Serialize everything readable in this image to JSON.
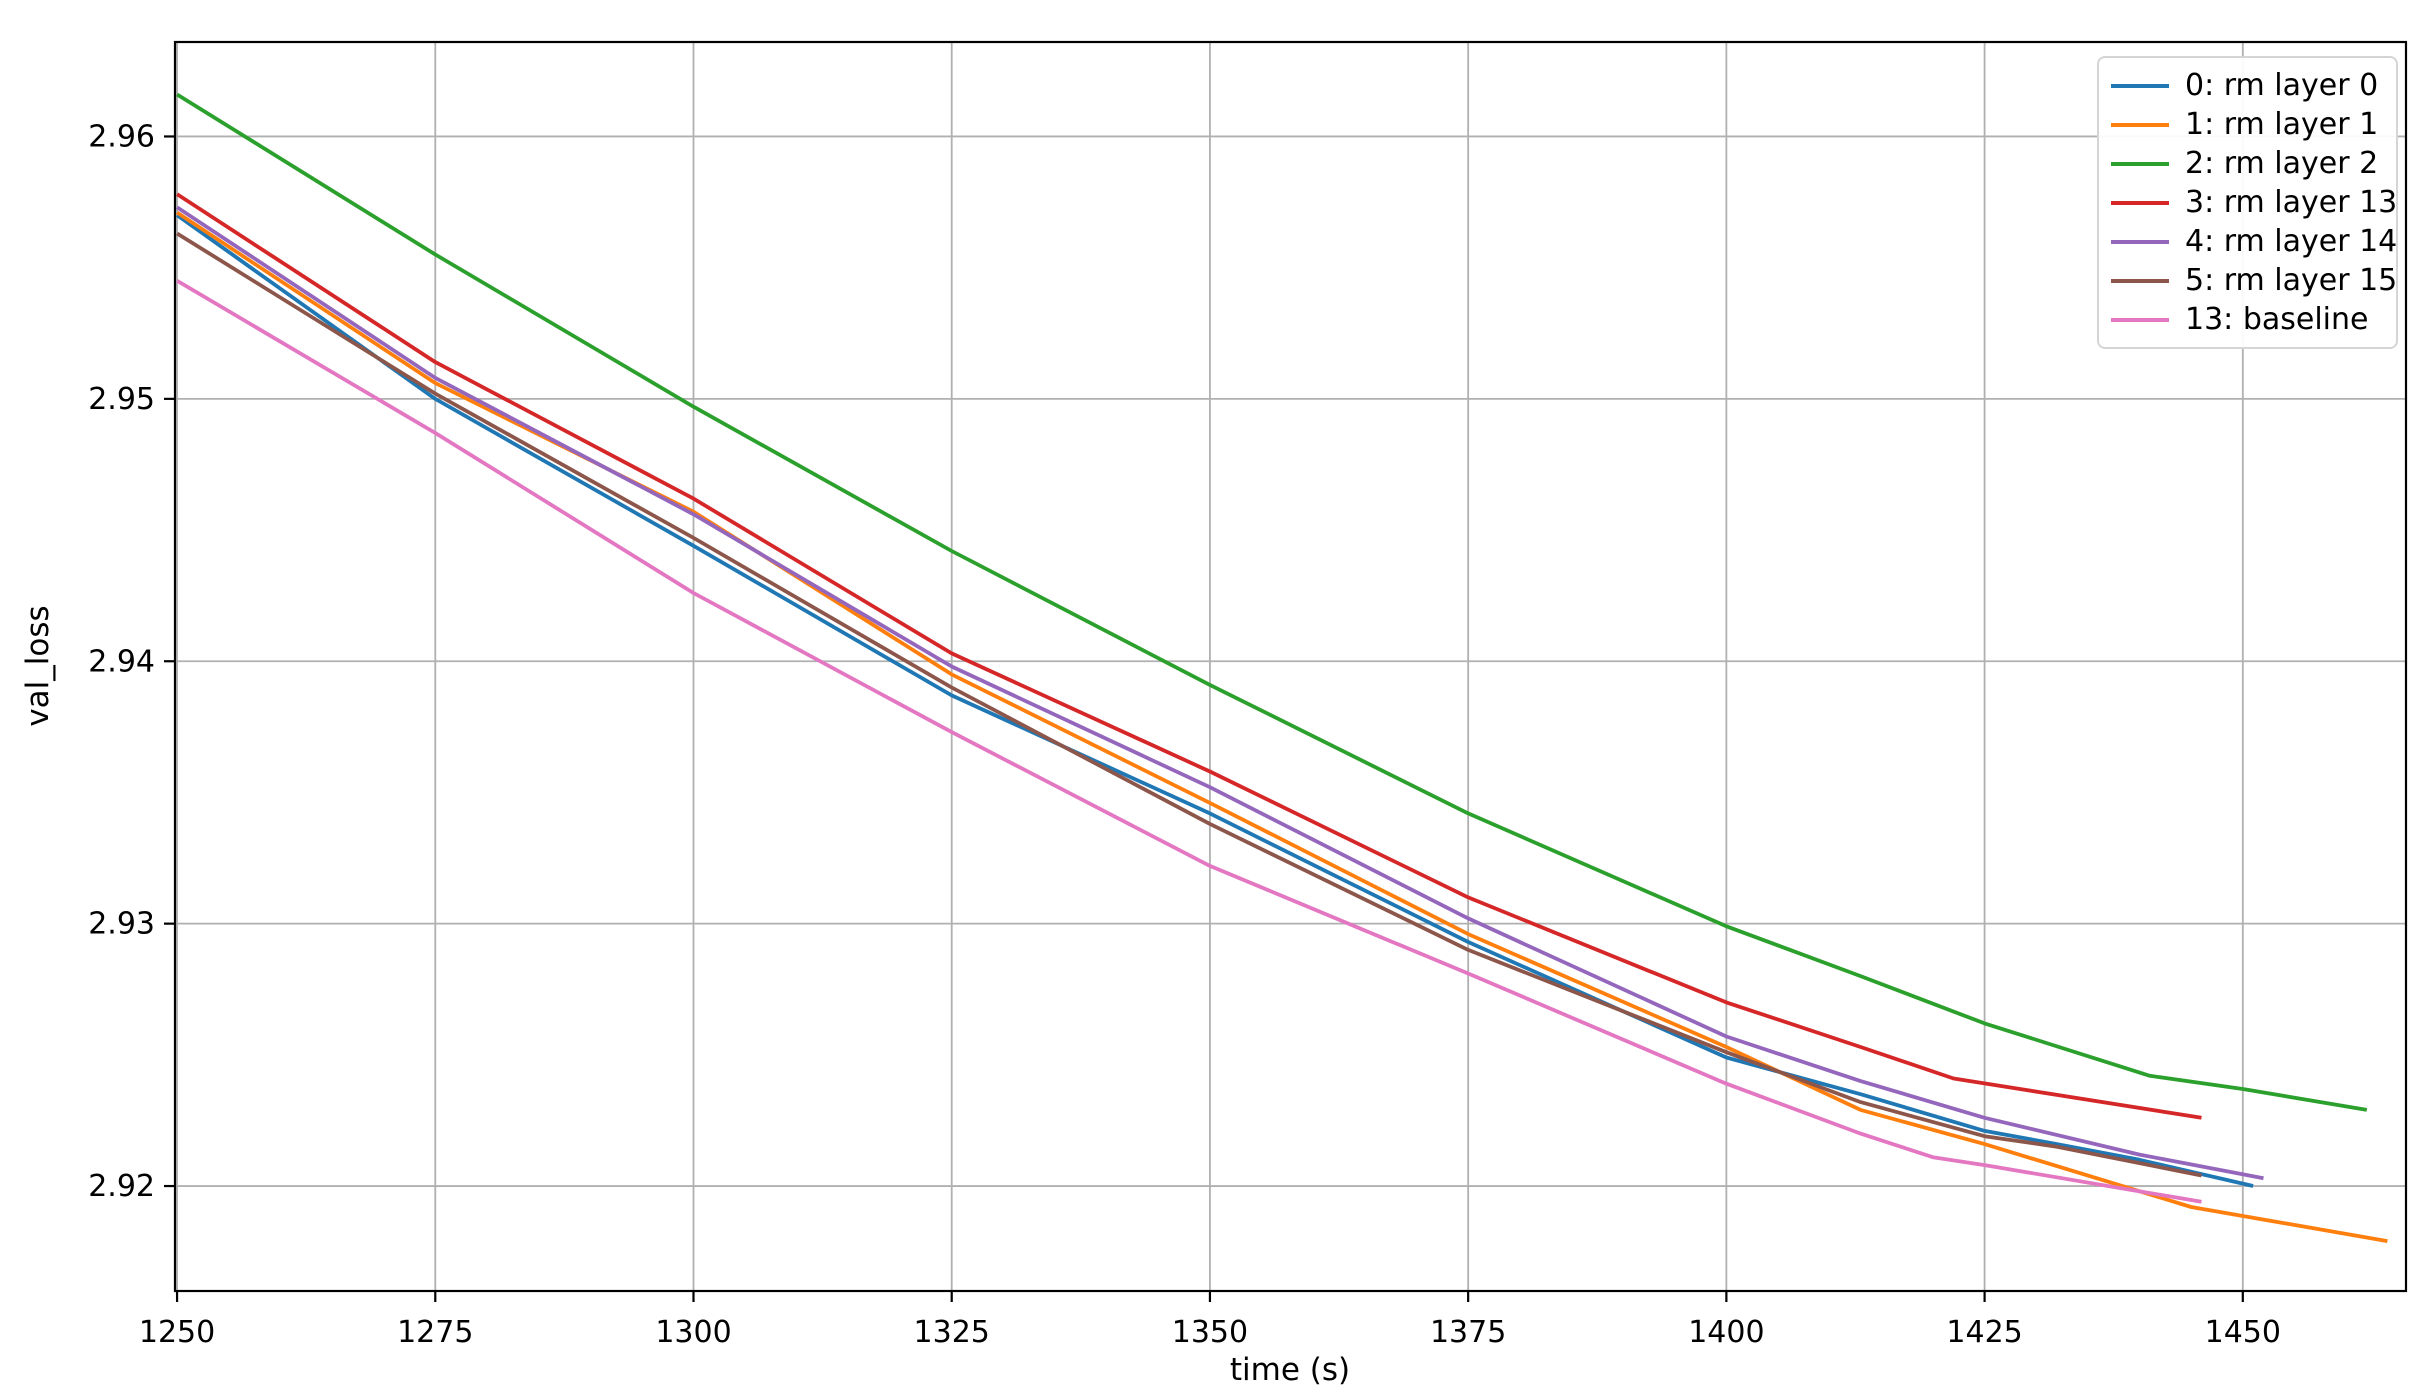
{
  "figure": {
    "background": "#ffffff",
    "text_color": "#000000"
  },
  "chart_data": {
    "type": "line",
    "title": "",
    "xlabel": "time (s)",
    "ylabel": "val_loss",
    "xlim": [
      1249.8,
      1465.8
    ],
    "ylim": [
      2.916,
      2.9636
    ],
    "x_ticks": [
      1250,
      1275,
      1300,
      1325,
      1350,
      1375,
      1400,
      1425,
      1450
    ],
    "y_ticks": [
      2.92,
      2.93,
      2.94,
      2.95,
      2.96
    ],
    "y_tick_labels": [
      "2.92",
      "2.93",
      "2.94",
      "2.95",
      "2.96"
    ],
    "grid": true,
    "grid_color": "#b0b0b0",
    "spine_color": "#000000",
    "legend_position": "upper right",
    "series": [
      {
        "name": "0: rm layer 0",
        "color": "#1f77b4",
        "points": [
          [
            1250,
            2.957
          ],
          [
            1275,
            2.95
          ],
          [
            1300,
            2.9444
          ],
          [
            1325,
            2.9387
          ],
          [
            1350,
            2.9342
          ],
          [
            1375,
            2.9293
          ],
          [
            1400,
            2.9249
          ],
          [
            1413,
            2.9235
          ],
          [
            1425,
            2.9221
          ],
          [
            1432,
            2.9216
          ],
          [
            1440,
            2.921
          ],
          [
            1451,
            2.92
          ]
        ]
      },
      {
        "name": "1: rm layer 1",
        "color": "#ff7f0e",
        "points": [
          [
            1250,
            2.9571
          ],
          [
            1275,
            2.9506
          ],
          [
            1300,
            2.9457
          ],
          [
            1325,
            2.9395
          ],
          [
            1350,
            2.9346
          ],
          [
            1375,
            2.9296
          ],
          [
            1400,
            2.9253
          ],
          [
            1413,
            2.9229
          ],
          [
            1425,
            2.9216
          ],
          [
            1445,
            2.9192
          ],
          [
            1464,
            2.9179
          ]
        ]
      },
      {
        "name": "2: rm layer 2",
        "color": "#2ca02c",
        "points": [
          [
            1250,
            2.9616
          ],
          [
            1275,
            2.9555
          ],
          [
            1300,
            2.9497
          ],
          [
            1325,
            2.9442
          ],
          [
            1350,
            2.9391
          ],
          [
            1375,
            2.9342
          ],
          [
            1400,
            2.9299
          ],
          [
            1413,
            2.928
          ],
          [
            1425,
            2.9262
          ],
          [
            1441,
            2.9242
          ],
          [
            1450,
            2.9237
          ],
          [
            1462,
            2.9229
          ]
        ]
      },
      {
        "name": "3: rm layer 13",
        "color": "#d62728",
        "points": [
          [
            1250,
            2.9578
          ],
          [
            1275,
            2.9514
          ],
          [
            1300,
            2.9462
          ],
          [
            1325,
            2.9403
          ],
          [
            1350,
            2.9358
          ],
          [
            1375,
            2.931
          ],
          [
            1400,
            2.927
          ],
          [
            1413,
            2.9253
          ],
          [
            1422,
            2.9241
          ],
          [
            1446,
            2.9226
          ]
        ]
      },
      {
        "name": "4: rm layer 14",
        "color": "#9467bd",
        "points": [
          [
            1250,
            2.9573
          ],
          [
            1275,
            2.9508
          ],
          [
            1300,
            2.9456
          ],
          [
            1325,
            2.9398
          ],
          [
            1350,
            2.9352
          ],
          [
            1375,
            2.9302
          ],
          [
            1400,
            2.9257
          ],
          [
            1413,
            2.924
          ],
          [
            1425,
            2.9226
          ],
          [
            1440,
            2.9212
          ],
          [
            1452,
            2.9203
          ]
        ]
      },
      {
        "name": "5: rm layer 15",
        "color": "#8c564b",
        "points": [
          [
            1250,
            2.9563
          ],
          [
            1275,
            2.9502
          ],
          [
            1300,
            2.9447
          ],
          [
            1325,
            2.939
          ],
          [
            1350,
            2.9338
          ],
          [
            1375,
            2.929
          ],
          [
            1400,
            2.9251
          ],
          [
            1413,
            2.9232
          ],
          [
            1425,
            2.9219
          ],
          [
            1432,
            2.9215
          ],
          [
            1446,
            2.9204
          ]
        ]
      },
      {
        "name": "13: baseline",
        "color": "#e377c2",
        "points": [
          [
            1250,
            2.9545
          ],
          [
            1275,
            2.9487
          ],
          [
            1300,
            2.9426
          ],
          [
            1325,
            2.9373
          ],
          [
            1350,
            2.9322
          ],
          [
            1375,
            2.9281
          ],
          [
            1400,
            2.9239
          ],
          [
            1413,
            2.922
          ],
          [
            1420,
            2.9211
          ],
          [
            1425,
            2.9208
          ],
          [
            1446,
            2.9194
          ]
        ]
      }
    ]
  }
}
